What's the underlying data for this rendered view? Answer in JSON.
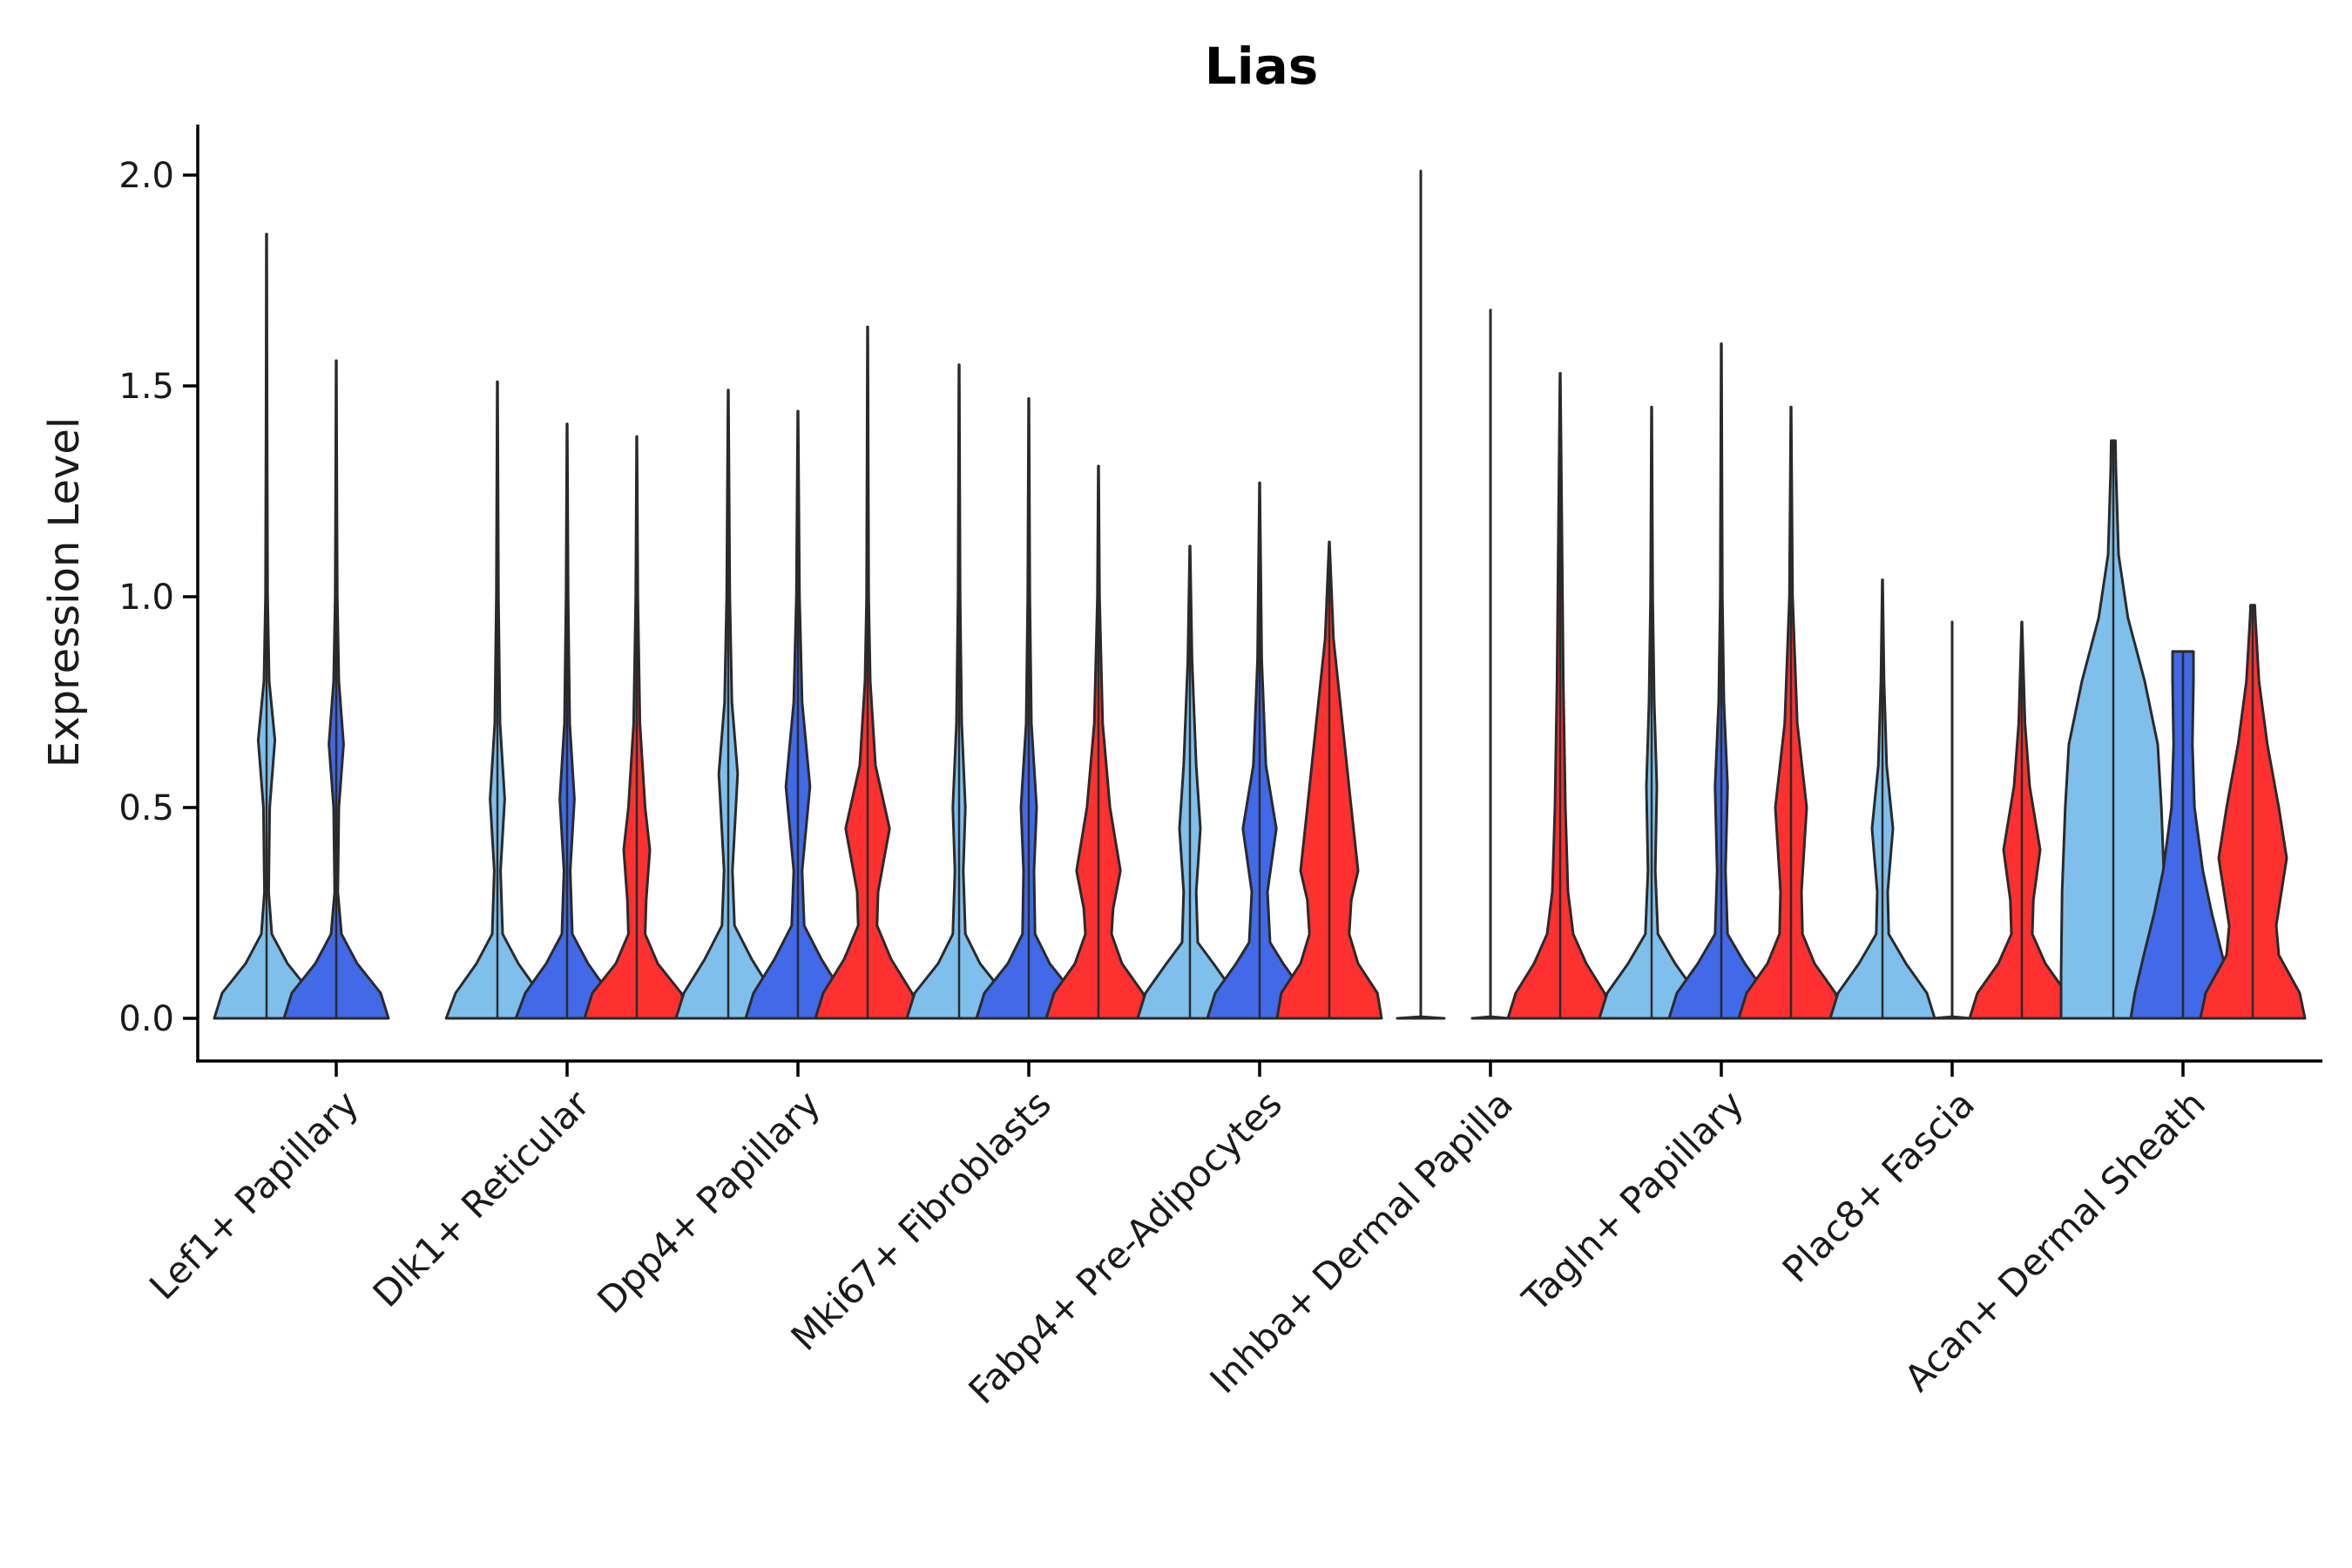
{
  "chart_data": {
    "type": "violin",
    "title": "Lias",
    "xlabel": "",
    "ylabel": "Expression Level",
    "ylim": [
      -0.1,
      2.12
    ],
    "yticks": [
      0.0,
      0.5,
      1.0,
      1.5,
      2.0
    ],
    "ytick_labels": [
      "0.0",
      "0.5",
      "1.0",
      "1.5",
      "2.0"
    ],
    "series_colors": [
      "#7fbfec",
      "#4169e8",
      "#ff3030"
    ],
    "categories": [
      "Lef1+ Papillary",
      "Dlk1+ Reticular",
      "Dpp4+ Papillary",
      "Mki67+ Fibroblasts",
      "Fabp4+ Pre-Adipocytes",
      "Inhba+ Dermal Papilla",
      "Tagln+ Papillary",
      "Plac8+ Fascia",
      "Acan+ Dermal Sheath"
    ],
    "violins": [
      [
        {
          "series": 0,
          "max": 1.86,
          "profile": [
            [
              0,
              1.0
            ],
            [
              0.06,
              0.85
            ],
            [
              0.13,
              0.4
            ],
            [
              0.2,
              0.1
            ],
            [
              0.3,
              0.04
            ],
            [
              0.5,
              0.06
            ],
            [
              0.66,
              0.16
            ],
            [
              0.8,
              0.05
            ],
            [
              1.0,
              0.02
            ],
            [
              1.4,
              0.01
            ],
            [
              1.86,
              0.003
            ]
          ]
        },
        {
          "series": 1,
          "max": 1.56,
          "profile": [
            [
              0,
              1.0
            ],
            [
              0.06,
              0.85
            ],
            [
              0.13,
              0.4
            ],
            [
              0.2,
              0.1
            ],
            [
              0.3,
              0.03
            ],
            [
              0.5,
              0.05
            ],
            [
              0.65,
              0.14
            ],
            [
              0.8,
              0.05
            ],
            [
              1.0,
              0.02
            ],
            [
              1.3,
              0.01
            ],
            [
              1.56,
              0.003
            ]
          ]
        },
        null
      ],
      [
        {
          "series": 0,
          "max": 1.51,
          "profile": [
            [
              0,
              0.98
            ],
            [
              0.06,
              0.8
            ],
            [
              0.13,
              0.4
            ],
            [
              0.2,
              0.1
            ],
            [
              0.35,
              0.06
            ],
            [
              0.52,
              0.14
            ],
            [
              0.7,
              0.05
            ],
            [
              1.0,
              0.02
            ],
            [
              1.51,
              0.003
            ]
          ]
        },
        {
          "series": 1,
          "max": 1.41,
          "profile": [
            [
              0,
              0.98
            ],
            [
              0.06,
              0.8
            ],
            [
              0.13,
              0.4
            ],
            [
              0.2,
              0.1
            ],
            [
              0.35,
              0.06
            ],
            [
              0.52,
              0.14
            ],
            [
              0.7,
              0.05
            ],
            [
              1.0,
              0.02
            ],
            [
              1.41,
              0.003
            ]
          ]
        },
        {
          "series": 2,
          "max": 1.38,
          "profile": [
            [
              0,
              1.0
            ],
            [
              0.06,
              0.85
            ],
            [
              0.13,
              0.4
            ],
            [
              0.2,
              0.16
            ],
            [
              0.28,
              0.18
            ],
            [
              0.4,
              0.25
            ],
            [
              0.5,
              0.16
            ],
            [
              0.7,
              0.06
            ],
            [
              1.0,
              0.02
            ],
            [
              1.38,
              0.003
            ]
          ]
        }
      ],
      [
        {
          "series": 0,
          "max": 1.49,
          "profile": [
            [
              0,
              1.0
            ],
            [
              0.06,
              0.85
            ],
            [
              0.14,
              0.45
            ],
            [
              0.22,
              0.12
            ],
            [
              0.35,
              0.08
            ],
            [
              0.58,
              0.18
            ],
            [
              0.75,
              0.07
            ],
            [
              1.0,
              0.03
            ],
            [
              1.49,
              0.003
            ]
          ]
        },
        {
          "series": 1,
          "max": 1.44,
          "profile": [
            [
              0,
              1.0
            ],
            [
              0.06,
              0.85
            ],
            [
              0.14,
              0.45
            ],
            [
              0.22,
              0.12
            ],
            [
              0.35,
              0.08
            ],
            [
              0.55,
              0.23
            ],
            [
              0.75,
              0.08
            ],
            [
              1.0,
              0.03
            ],
            [
              1.44,
              0.003
            ]
          ]
        },
        {
          "series": 2,
          "max": 1.64,
          "profile": [
            [
              0,
              1.0
            ],
            [
              0.06,
              0.85
            ],
            [
              0.14,
              0.45
            ],
            [
              0.22,
              0.18
            ],
            [
              0.3,
              0.2
            ],
            [
              0.45,
              0.42
            ],
            [
              0.6,
              0.15
            ],
            [
              0.8,
              0.05
            ],
            [
              1.0,
              0.02
            ],
            [
              1.64,
              0.003
            ]
          ]
        }
      ],
      [
        {
          "series": 0,
          "max": 1.55,
          "profile": [
            [
              0,
              1.0
            ],
            [
              0.06,
              0.85
            ],
            [
              0.13,
              0.4
            ],
            [
              0.2,
              0.12
            ],
            [
              0.35,
              0.08
            ],
            [
              0.5,
              0.12
            ],
            [
              0.7,
              0.05
            ],
            [
              1.0,
              0.02
            ],
            [
              1.55,
              0.003
            ]
          ]
        },
        {
          "series": 1,
          "max": 1.47,
          "profile": [
            [
              0,
              1.0
            ],
            [
              0.06,
              0.85
            ],
            [
              0.13,
              0.4
            ],
            [
              0.2,
              0.12
            ],
            [
              0.35,
              0.1
            ],
            [
              0.5,
              0.15
            ],
            [
              0.7,
              0.05
            ],
            [
              1.0,
              0.02
            ],
            [
              1.47,
              0.003
            ]
          ]
        },
        {
          "series": 2,
          "max": 1.31,
          "profile": [
            [
              0,
              1.0
            ],
            [
              0.06,
              0.85
            ],
            [
              0.13,
              0.45
            ],
            [
              0.2,
              0.25
            ],
            [
              0.26,
              0.28
            ],
            [
              0.35,
              0.42
            ],
            [
              0.5,
              0.22
            ],
            [
              0.7,
              0.08
            ],
            [
              1.0,
              0.02
            ],
            [
              1.31,
              0.003
            ]
          ]
        }
      ],
      [
        {
          "series": 0,
          "max": 1.12,
          "profile": [
            [
              0,
              1.0
            ],
            [
              0.06,
              0.85
            ],
            [
              0.13,
              0.45
            ],
            [
              0.18,
              0.15
            ],
            [
              0.3,
              0.12
            ],
            [
              0.45,
              0.2
            ],
            [
              0.6,
              0.12
            ],
            [
              0.85,
              0.04
            ],
            [
              1.12,
              0.003
            ]
          ]
        },
        {
          "series": 1,
          "max": 1.27,
          "profile": [
            [
              0,
              1.0
            ],
            [
              0.06,
              0.85
            ],
            [
              0.13,
              0.45
            ],
            [
              0.18,
              0.2
            ],
            [
              0.3,
              0.15
            ],
            [
              0.45,
              0.32
            ],
            [
              0.6,
              0.12
            ],
            [
              0.85,
              0.04
            ],
            [
              1.27,
              0.003
            ]
          ]
        },
        {
          "series": 2,
          "max": 1.13,
          "profile": [
            [
              0,
              1.0
            ],
            [
              0.06,
              0.92
            ],
            [
              0.13,
              0.55
            ],
            [
              0.2,
              0.38
            ],
            [
              0.28,
              0.42
            ],
            [
              0.35,
              0.55
            ],
            [
              0.5,
              0.42
            ],
            [
              0.7,
              0.25
            ],
            [
              0.9,
              0.08
            ],
            [
              1.13,
              0.003
            ]
          ]
        }
      ],
      [
        {
          "series": 0,
          "max": 2.01,
          "profile": [
            [
              0,
              0.45
            ],
            [
              0.004,
              0.0
            ],
            [
              2.01,
              0.0
            ]
          ]
        },
        {
          "series": 1,
          "max": 1.68,
          "profile": [
            [
              0,
              0.35
            ],
            [
              0.004,
              0.0
            ],
            [
              1.68,
              0.0
            ]
          ]
        },
        {
          "series": 2,
          "max": 1.53,
          "profile": [
            [
              0,
              1.0
            ],
            [
              0.06,
              0.85
            ],
            [
              0.13,
              0.5
            ],
            [
              0.2,
              0.25
            ],
            [
              0.3,
              0.15
            ],
            [
              0.5,
              0.1
            ],
            [
              0.8,
              0.06
            ],
            [
              1.2,
              0.03
            ],
            [
              1.53,
              0.003
            ]
          ]
        }
      ],
      [
        {
          "series": 0,
          "max": 1.45,
          "profile": [
            [
              0,
              1.0
            ],
            [
              0.06,
              0.85
            ],
            [
              0.13,
              0.45
            ],
            [
              0.2,
              0.12
            ],
            [
              0.35,
              0.07
            ],
            [
              0.55,
              0.1
            ],
            [
              0.75,
              0.05
            ],
            [
              1.0,
              0.02
            ],
            [
              1.45,
              0.003
            ]
          ]
        },
        {
          "series": 1,
          "max": 1.6,
          "profile": [
            [
              0,
              1.0
            ],
            [
              0.06,
              0.85
            ],
            [
              0.13,
              0.45
            ],
            [
              0.2,
              0.12
            ],
            [
              0.35,
              0.08
            ],
            [
              0.55,
              0.12
            ],
            [
              0.75,
              0.05
            ],
            [
              1.0,
              0.02
            ],
            [
              1.6,
              0.003
            ]
          ]
        },
        {
          "series": 2,
          "max": 1.45,
          "profile": [
            [
              0,
              1.0
            ],
            [
              0.06,
              0.85
            ],
            [
              0.13,
              0.45
            ],
            [
              0.2,
              0.22
            ],
            [
              0.3,
              0.2
            ],
            [
              0.5,
              0.3
            ],
            [
              0.7,
              0.12
            ],
            [
              1.0,
              0.03
            ],
            [
              1.45,
              0.003
            ]
          ]
        }
      ],
      [
        {
          "series": 0,
          "max": 1.04,
          "profile": [
            [
              0,
              1.0
            ],
            [
              0.06,
              0.85
            ],
            [
              0.13,
              0.45
            ],
            [
              0.2,
              0.12
            ],
            [
              0.3,
              0.1
            ],
            [
              0.45,
              0.2
            ],
            [
              0.6,
              0.08
            ],
            [
              0.8,
              0.03
            ],
            [
              1.04,
              0.003
            ]
          ]
        },
        {
          "series": 1,
          "max": 0.94,
          "profile": [
            [
              0,
              0.35
            ],
            [
              0.004,
              0.0
            ],
            [
              0.94,
              0.0
            ]
          ]
        },
        {
          "series": 2,
          "max": 0.94,
          "profile": [
            [
              0,
              1.0
            ],
            [
              0.06,
              0.85
            ],
            [
              0.13,
              0.45
            ],
            [
              0.2,
              0.2
            ],
            [
              0.28,
              0.22
            ],
            [
              0.4,
              0.35
            ],
            [
              0.55,
              0.15
            ],
            [
              0.7,
              0.06
            ],
            [
              0.94,
              0.003
            ]
          ]
        }
      ],
      [
        {
          "series": 0,
          "max": 1.37,
          "profile": [
            [
              0,
              1.0
            ],
            [
              0.1,
              1.0
            ],
            [
              0.3,
              0.98
            ],
            [
              0.5,
              0.92
            ],
            [
              0.65,
              0.85
            ],
            [
              0.8,
              0.6
            ],
            [
              0.95,
              0.28
            ],
            [
              1.1,
              0.1
            ],
            [
              1.3,
              0.05
            ],
            [
              1.37,
              0.04
            ]
          ]
        },
        {
          "series": 1,
          "max": 0.87,
          "profile": [
            [
              0,
              1.0
            ],
            [
              0.06,
              0.92
            ],
            [
              0.15,
              0.75
            ],
            [
              0.25,
              0.55
            ],
            [
              0.35,
              0.38
            ],
            [
              0.5,
              0.22
            ],
            [
              0.65,
              0.18
            ],
            [
              0.8,
              0.2
            ],
            [
              0.87,
              0.2
            ]
          ]
        },
        {
          "series": 2,
          "max": 0.98,
          "profile": [
            [
              0,
              1.0
            ],
            [
              0.06,
              0.9
            ],
            [
              0.15,
              0.5
            ],
            [
              0.22,
              0.45
            ],
            [
              0.3,
              0.55
            ],
            [
              0.38,
              0.65
            ],
            [
              0.5,
              0.5
            ],
            [
              0.65,
              0.28
            ],
            [
              0.8,
              0.12
            ],
            [
              0.95,
              0.05
            ],
            [
              0.98,
              0.04
            ]
          ]
        }
      ]
    ]
  }
}
